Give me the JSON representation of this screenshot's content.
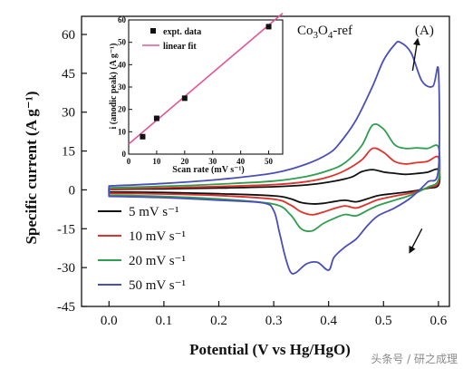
{
  "colors": {
    "s5": "#111111",
    "s10": "#e0322c",
    "s20": "#2e9e4f",
    "s50": "#4a4fb8",
    "fit": "#e0569a"
  },
  "chart_data": [
    {
      "type": "line",
      "xlabel": "Potential (V vs Hg/HgO)",
      "ylabel": "Specific current (A g⁻¹)",
      "xlim": [
        -0.05,
        0.62
      ],
      "ylim": [
        -45,
        67
      ],
      "xticks": [
        0.0,
        0.1,
        0.2,
        0.3,
        0.4,
        0.5,
        0.6
      ],
      "xtick_labels": [
        "0.0",
        "0.1",
        "0.2",
        "0.3",
        "0.4",
        "0.5",
        "0.6"
      ],
      "yticks": [
        -45,
        -30,
        -15,
        0,
        15,
        30,
        45,
        60
      ],
      "ytick_labels": [
        "-45",
        "-30",
        "-15",
        "0",
        "15",
        "30",
        "45",
        "60"
      ],
      "annotation": "Co₃O₄-ref",
      "panel_label": "(A)",
      "legend_position": "lower-left",
      "series": [
        {
          "name": "5 mV s⁻¹",
          "color_key": "s5",
          "x": [
            0.0,
            0.1,
            0.2,
            0.3,
            0.36,
            0.4,
            0.44,
            0.46,
            0.48,
            0.5,
            0.52,
            0.54,
            0.56,
            0.58,
            0.6,
            0.6,
            0.58,
            0.55,
            0.52,
            0.49,
            0.47,
            0.45,
            0.43,
            0.41,
            0.39,
            0.37,
            0.35,
            0.33,
            0.3,
            0.2,
            0.1,
            0.0
          ],
          "y": [
            0.2,
            0.4,
            0.7,
            1.2,
            1.9,
            3.0,
            4.8,
            7.0,
            7.8,
            6.9,
            6.4,
            6.0,
            6.3,
            6.8,
            7.8,
            1.8,
            0.6,
            -0.6,
            -1.4,
            -2.2,
            -3.5,
            -4.6,
            -4.0,
            -4.5,
            -5.2,
            -5.4,
            -4.9,
            -3.4,
            -2.3,
            -1.5,
            -1.0,
            -0.8
          ]
        },
        {
          "name": "10 mV s⁻¹",
          "color_key": "s10",
          "x": [
            0.0,
            0.1,
            0.2,
            0.3,
            0.36,
            0.4,
            0.43,
            0.46,
            0.48,
            0.5,
            0.52,
            0.54,
            0.56,
            0.58,
            0.6,
            0.6,
            0.58,
            0.55,
            0.52,
            0.49,
            0.47,
            0.45,
            0.43,
            0.41,
            0.39,
            0.37,
            0.35,
            0.33,
            0.3,
            0.2,
            0.1,
            0.0
          ],
          "y": [
            0.4,
            0.8,
            1.3,
            2.0,
            3.2,
            5.0,
            7.5,
            11.5,
            16.0,
            14.5,
            11.0,
            10.0,
            10.5,
            11.0,
            12.5,
            2.8,
            0.8,
            -1.2,
            -2.4,
            -3.8,
            -5.5,
            -7.0,
            -6.2,
            -7.2,
            -8.6,
            -9.6,
            -8.5,
            -5.8,
            -3.6,
            -2.2,
            -1.6,
            -1.3
          ]
        },
        {
          "name": "20 mV s⁻¹",
          "color_key": "s20",
          "x": [
            0.0,
            0.1,
            0.2,
            0.3,
            0.36,
            0.4,
            0.43,
            0.46,
            0.48,
            0.5,
            0.52,
            0.54,
            0.56,
            0.58,
            0.6,
            0.6,
            0.58,
            0.55,
            0.52,
            0.49,
            0.47,
            0.45,
            0.43,
            0.41,
            0.39,
            0.37,
            0.35,
            0.33,
            0.3,
            0.2,
            0.1,
            0.0
          ],
          "y": [
            0.8,
            1.4,
            2.2,
            3.4,
            5.2,
            7.5,
            10.5,
            17.0,
            25.0,
            23.5,
            17.5,
            16.0,
            16.2,
            16.0,
            16.5,
            4.0,
            1.0,
            -2.0,
            -4.0,
            -6.0,
            -8.0,
            -10.0,
            -9.5,
            -11.0,
            -13.0,
            -15.8,
            -15.0,
            -9.5,
            -5.5,
            -3.5,
            -2.5,
            -2.0
          ]
        },
        {
          "name": "50 mV s⁻¹",
          "color_key": "s50",
          "x": [
            0.0,
            0.1,
            0.2,
            0.3,
            0.36,
            0.4,
            0.42,
            0.45,
            0.48,
            0.5,
            0.52,
            0.53,
            0.55,
            0.57,
            0.59,
            0.6,
            0.6,
            0.58,
            0.55,
            0.52,
            0.49,
            0.47,
            0.45,
            0.43,
            0.41,
            0.4,
            0.38,
            0.36,
            0.34,
            0.33,
            0.32,
            0.31,
            0.3,
            0.28,
            0.2,
            0.1,
            0.0
          ],
          "y": [
            1.5,
            2.5,
            4.0,
            6.5,
            10.0,
            14.0,
            18.0,
            27.0,
            40.0,
            50.0,
            56.0,
            57.0,
            53.0,
            42.0,
            40.0,
            46.0,
            8.0,
            3.0,
            -3.0,
            -7.0,
            -10.0,
            -14.0,
            -19.0,
            -22.0,
            -26.0,
            -31.0,
            -28.0,
            -28.5,
            -32.0,
            -31.5,
            -25.0,
            -16.0,
            -8.0,
            -5.0,
            -4.0,
            -3.0,
            -2.5
          ]
        }
      ],
      "arrows": [
        {
          "from": [
            0.553,
            46
          ],
          "to": [
            0.562,
            58
          ]
        },
        {
          "from": [
            0.57,
            -15
          ],
          "to": [
            0.548,
            -24
          ]
        }
      ]
    },
    {
      "type": "scatter",
      "inset": true,
      "xlabel": "Scan rate (mV s⁻¹)",
      "ylabel": "i (anodic peak) (A g⁻¹)",
      "xlim": [
        0,
        55
      ],
      "ylim": [
        0,
        60
      ],
      "xticks": [
        0,
        10,
        20,
        30,
        40,
        50
      ],
      "xtick_labels": [
        "0",
        "10",
        "20",
        "30",
        "40",
        "50"
      ],
      "yticks": [
        0,
        10,
        20,
        30,
        40,
        50,
        60
      ],
      "ytick_labels": [
        "0",
        "10",
        "20",
        "30",
        "40",
        "50",
        "60"
      ],
      "legend_position": "top-left",
      "series": [
        {
          "name": "expt. data",
          "type": "scatter",
          "x": [
            5,
            10,
            20,
            50
          ],
          "y": [
            7.8,
            16,
            25,
            57
          ]
        },
        {
          "name": "linear fit",
          "type": "line",
          "x": [
            0,
            55
          ],
          "y": [
            4.5,
            63
          ]
        }
      ]
    }
  ],
  "watermark": "头条号 / 研之成理"
}
